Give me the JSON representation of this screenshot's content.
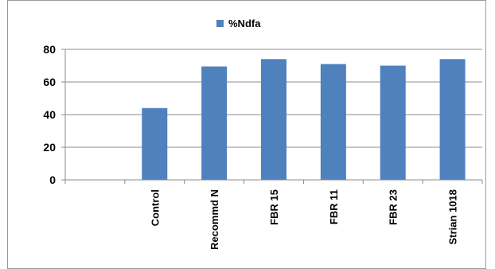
{
  "chart_data": {
    "type": "bar",
    "categories": [
      "Control",
      "Recommd N",
      "FBR 15",
      "FBR 11",
      "FBR 23",
      "Strian 1018"
    ],
    "series": [
      {
        "name": "%Ndfa",
        "values": [
          44,
          69.5,
          74,
          71,
          70,
          74
        ],
        "color": "#4f81bd"
      }
    ],
    "y_ticks": [
      0,
      20,
      40,
      60,
      80
    ],
    "ylim": [
      0,
      80
    ],
    "grid": true,
    "legend": "top-center"
  }
}
